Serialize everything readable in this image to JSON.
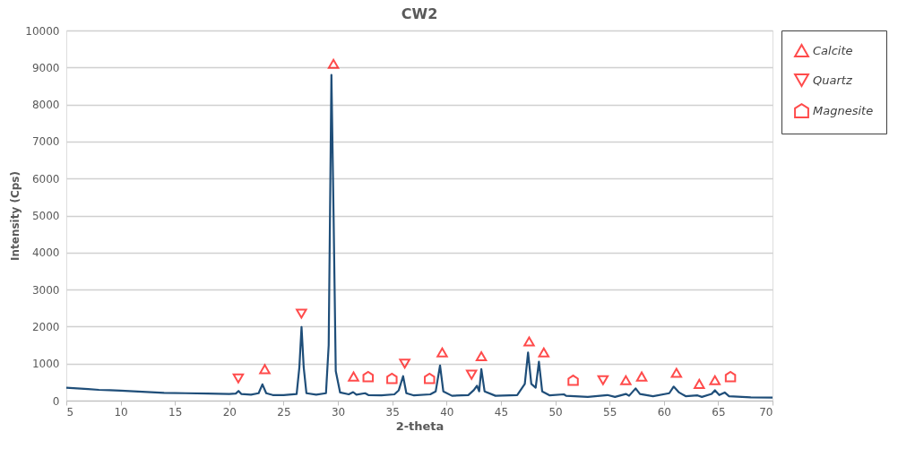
{
  "chart_data": {
    "type": "line",
    "title": "CW2",
    "xlabel": "2-theta",
    "ylabel": "Intensity (Cps)",
    "xlim": [
      5,
      70
    ],
    "xticks": [
      5,
      10,
      15,
      20,
      25,
      30,
      35,
      40,
      45,
      50,
      55,
      60,
      65,
      70
    ],
    "ylim": [
      0,
      10000
    ],
    "yticks": [
      0,
      1000,
      2000,
      3000,
      4000,
      5000,
      6000,
      7000,
      8000,
      9000,
      10000
    ],
    "grid": "y",
    "legend": "right",
    "series": [
      {
        "color": "#1f4e79",
        "marker": "none",
        "line_style": "solid",
        "x": [
          5,
          6,
          7,
          8,
          9,
          10,
          12,
          14,
          16,
          18,
          20,
          20.6,
          20.85,
          21.1,
          22,
          22.7,
          23.05,
          23.4,
          24,
          25,
          26.2,
          26.45,
          26.65,
          26.85,
          27.1,
          28,
          28.9,
          29.15,
          29.4,
          29.6,
          29.8,
          30.2,
          31,
          31.4,
          31.7,
          32.5,
          32.8,
          34,
          35.2,
          35.6,
          36.0,
          36.3,
          37,
          38.5,
          39.0,
          39.4,
          39.7,
          40.5,
          42,
          42.5,
          42.8,
          43.0,
          43.2,
          43.5,
          44.5,
          46.5,
          47.2,
          47.5,
          47.8,
          48.2,
          48.5,
          48.8,
          49.5,
          50.8,
          51,
          53,
          54.8,
          55.5,
          56.5,
          56.8,
          57.4,
          57.8,
          59,
          60.5,
          60.9,
          61.4,
          62,
          63.1,
          63.5,
          64.4,
          64.7,
          65.1,
          65.6,
          66,
          68,
          70
        ],
        "values": [
          350,
          330,
          310,
          290,
          280,
          270,
          240,
          210,
          200,
          190,
          180,
          190,
          260,
          180,
          160,
          200,
          440,
          200,
          150,
          150,
          180,
          900,
          1990,
          900,
          200,
          160,
          200,
          1500,
          8800,
          5000,
          800,
          220,
          170,
          230,
          160,
          200,
          150,
          140,
          170,
          280,
          660,
          200,
          140,
          170,
          250,
          950,
          250,
          130,
          150,
          280,
          400,
          250,
          850,
          250,
          130,
          150,
          450,
          1300,
          450,
          350,
          1050,
          250,
          140,
          170,
          130,
          100,
          150,
          100,
          180,
          130,
          330,
          180,
          120,
          200,
          380,
          220,
          120,
          140,
          100,
          180,
          280,
          150,
          220,
          120,
          90,
          80
        ]
      },
      {
        "type": "scatter",
        "name": "Calcite",
        "color": "#ff0000",
        "marker": "triangle-up",
        "x": [
          23.27,
          29.59,
          31.44,
          39.6,
          43.2,
          47.6,
          48.95,
          56.5,
          57.96,
          61.16,
          63.26,
          64.7
        ],
        "values": [
          850,
          9100,
          650,
          1300,
          1200,
          1600,
          1300,
          550,
          650,
          750,
          450,
          550
        ]
      },
      {
        "type": "scatter",
        "name": "Quartz",
        "color": "#ff0000",
        "marker": "triangle-down",
        "x": [
          20.83,
          26.64,
          36.15,
          42.3,
          54.4
        ],
        "values": [
          600,
          2350,
          1000,
          700,
          550
        ]
      },
      {
        "type": "scatter",
        "name": "Magnesite",
        "color": "#ff0000",
        "x": [
          32.78,
          34.97,
          38.43,
          51.65,
          66.13
        ],
        "values": [
          650,
          600,
          600,
          550,
          650
        ]
      }
    ]
  }
}
